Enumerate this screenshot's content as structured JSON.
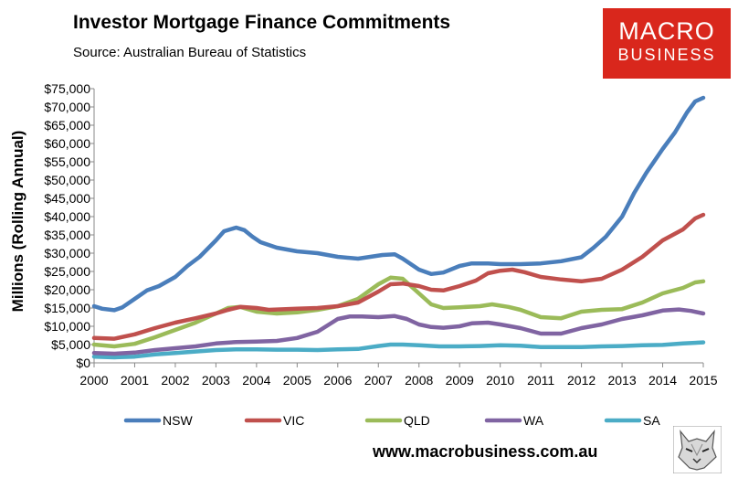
{
  "header": {
    "title": "Investor Mortgage Finance Commitments",
    "subtitle": "Source: Australian Bureau of Statistics"
  },
  "logo": {
    "line1": "MACRO",
    "line2": "BUSINESS",
    "color": "#d9271c"
  },
  "footer": {
    "website": "www.macrobusiness.com.au"
  },
  "chart_data": {
    "type": "line",
    "title": "Investor Mortgage Finance Commitments",
    "ylabel": "Millions (Rolling Annual)",
    "xlabel": "",
    "xlim": [
      2000,
      2015
    ],
    "ylim": [
      0,
      75000
    ],
    "x_ticks": [
      "2000",
      "2001",
      "2002",
      "2003",
      "2004",
      "2005",
      "2006",
      "2007",
      "2008",
      "2009",
      "2010",
      "2011",
      "2012",
      "2013",
      "2014",
      "2015"
    ],
    "y_ticks": [
      "$0",
      "$5,000",
      "$10,000",
      "$15,000",
      "$20,000",
      "$25,000",
      "$30,000",
      "$35,000",
      "$40,000",
      "$45,000",
      "$50,000",
      "$55,000",
      "$60,000",
      "$65,000",
      "$70,000",
      "$75,000"
    ],
    "grid": false,
    "legend": "bottom",
    "series": [
      {
        "name": "NSW",
        "color": "#4a7ebb",
        "points": [
          [
            2000,
            15500
          ],
          [
            2000.2,
            14800
          ],
          [
            2000.5,
            14400
          ],
          [
            2000.7,
            15200
          ],
          [
            2001,
            17500
          ],
          [
            2001.3,
            19800
          ],
          [
            2001.6,
            21000
          ],
          [
            2002,
            23500
          ],
          [
            2002.3,
            26500
          ],
          [
            2002.6,
            29000
          ],
          [
            2003,
            33500
          ],
          [
            2003.2,
            36000
          ],
          [
            2003.5,
            37000
          ],
          [
            2003.7,
            36300
          ],
          [
            2003.9,
            34500
          ],
          [
            2004.1,
            33000
          ],
          [
            2004.5,
            31500
          ],
          [
            2005,
            30500
          ],
          [
            2005.5,
            30000
          ],
          [
            2006,
            29000
          ],
          [
            2006.5,
            28500
          ],
          [
            2006.8,
            29000
          ],
          [
            2007.1,
            29500
          ],
          [
            2007.4,
            29700
          ],
          [
            2007.6,
            28500
          ],
          [
            2008,
            25500
          ],
          [
            2008.3,
            24300
          ],
          [
            2008.6,
            24700
          ],
          [
            2009,
            26500
          ],
          [
            2009.3,
            27200
          ],
          [
            2009.7,
            27200
          ],
          [
            2010,
            27000
          ],
          [
            2010.5,
            27000
          ],
          [
            2011,
            27200
          ],
          [
            2011.5,
            27800
          ],
          [
            2012,
            28900
          ],
          [
            2012.3,
            31500
          ],
          [
            2012.6,
            34500
          ],
          [
            2013,
            40000
          ],
          [
            2013.3,
            46500
          ],
          [
            2013.6,
            52000
          ],
          [
            2014,
            58500
          ],
          [
            2014.3,
            63000
          ],
          [
            2014.6,
            68500
          ],
          [
            2014.8,
            71500
          ],
          [
            2015,
            72500
          ]
        ]
      },
      {
        "name": "VIC",
        "color": "#c0504d",
        "points": [
          [
            2000,
            6800
          ],
          [
            2000.5,
            6600
          ],
          [
            2001,
            7800
          ],
          [
            2001.5,
            9500
          ],
          [
            2002,
            11000
          ],
          [
            2002.5,
            12200
          ],
          [
            2003,
            13500
          ],
          [
            2003.3,
            14500
          ],
          [
            2003.6,
            15300
          ],
          [
            2004,
            15000
          ],
          [
            2004.3,
            14500
          ],
          [
            2005,
            14800
          ],
          [
            2005.5,
            15000
          ],
          [
            2006,
            15500
          ],
          [
            2006.5,
            16500
          ],
          [
            2007,
            19500
          ],
          [
            2007.3,
            21500
          ],
          [
            2007.6,
            21700
          ],
          [
            2008,
            21000
          ],
          [
            2008.3,
            20000
          ],
          [
            2008.6,
            19800
          ],
          [
            2009,
            21000
          ],
          [
            2009.4,
            22500
          ],
          [
            2009.7,
            24500
          ],
          [
            2010,
            25200
          ],
          [
            2010.3,
            25500
          ],
          [
            2010.6,
            24800
          ],
          [
            2011,
            23500
          ],
          [
            2011.5,
            22800
          ],
          [
            2012,
            22300
          ],
          [
            2012.5,
            23000
          ],
          [
            2013,
            25500
          ],
          [
            2013.5,
            29000
          ],
          [
            2014,
            33500
          ],
          [
            2014.5,
            36500
          ],
          [
            2014.8,
            39500
          ],
          [
            2015,
            40500
          ]
        ]
      },
      {
        "name": "QLD",
        "color": "#9bbb59",
        "points": [
          [
            2000,
            5000
          ],
          [
            2000.5,
            4500
          ],
          [
            2001,
            5200
          ],
          [
            2001.5,
            7000
          ],
          [
            2002,
            9000
          ],
          [
            2002.5,
            11000
          ],
          [
            2003,
            13500
          ],
          [
            2003.3,
            15000
          ],
          [
            2003.6,
            15300
          ],
          [
            2004,
            14000
          ],
          [
            2004.5,
            13500
          ],
          [
            2005,
            13800
          ],
          [
            2005.5,
            14500
          ],
          [
            2006,
            15500
          ],
          [
            2006.5,
            17500
          ],
          [
            2007,
            21500
          ],
          [
            2007.3,
            23300
          ],
          [
            2007.6,
            23000
          ],
          [
            2008,
            19000
          ],
          [
            2008.3,
            16000
          ],
          [
            2008.6,
            15000
          ],
          [
            2009,
            15200
          ],
          [
            2009.5,
            15500
          ],
          [
            2009.8,
            16000
          ],
          [
            2010.2,
            15300
          ],
          [
            2010.5,
            14500
          ],
          [
            2011,
            12500
          ],
          [
            2011.5,
            12200
          ],
          [
            2012,
            14000
          ],
          [
            2012.5,
            14500
          ],
          [
            2013,
            14700
          ],
          [
            2013.5,
            16500
          ],
          [
            2014,
            19000
          ],
          [
            2014.5,
            20500
          ],
          [
            2014.8,
            22000
          ],
          [
            2015,
            22300
          ]
        ]
      },
      {
        "name": "WA",
        "color": "#8064a2",
        "points": [
          [
            2000,
            2700
          ],
          [
            2000.5,
            2500
          ],
          [
            2001,
            2800
          ],
          [
            2001.5,
            3500
          ],
          [
            2002,
            4000
          ],
          [
            2002.5,
            4500
          ],
          [
            2003,
            5300
          ],
          [
            2003.5,
            5700
          ],
          [
            2004,
            5800
          ],
          [
            2004.5,
            6000
          ],
          [
            2005,
            6800
          ],
          [
            2005.5,
            8500
          ],
          [
            2006,
            12000
          ],
          [
            2006.3,
            12700
          ],
          [
            2006.6,
            12700
          ],
          [
            2007,
            12500
          ],
          [
            2007.4,
            12800
          ],
          [
            2007.7,
            12000
          ],
          [
            2008,
            10500
          ],
          [
            2008.3,
            9800
          ],
          [
            2008.6,
            9600
          ],
          [
            2009,
            10000
          ],
          [
            2009.3,
            10800
          ],
          [
            2009.7,
            11000
          ],
          [
            2010,
            10500
          ],
          [
            2010.5,
            9500
          ],
          [
            2011,
            8000
          ],
          [
            2011.5,
            8000
          ],
          [
            2012,
            9500
          ],
          [
            2012.5,
            10500
          ],
          [
            2013,
            12000
          ],
          [
            2013.5,
            13000
          ],
          [
            2014,
            14300
          ],
          [
            2014.4,
            14600
          ],
          [
            2014.7,
            14200
          ],
          [
            2015,
            13500
          ]
        ]
      },
      {
        "name": "SA",
        "color": "#4bacc6",
        "points": [
          [
            2000,
            1700
          ],
          [
            2000.5,
            1500
          ],
          [
            2001,
            1700
          ],
          [
            2001.5,
            2300
          ],
          [
            2002,
            2700
          ],
          [
            2002.5,
            3100
          ],
          [
            2003,
            3500
          ],
          [
            2003.5,
            3700
          ],
          [
            2004,
            3700
          ],
          [
            2004.5,
            3600
          ],
          [
            2005,
            3600
          ],
          [
            2005.5,
            3500
          ],
          [
            2006,
            3700
          ],
          [
            2006.5,
            3800
          ],
          [
            2007,
            4600
          ],
          [
            2007.3,
            5000
          ],
          [
            2007.6,
            5000
          ],
          [
            2008,
            4800
          ],
          [
            2008.5,
            4500
          ],
          [
            2009,
            4500
          ],
          [
            2009.5,
            4600
          ],
          [
            2010,
            4800
          ],
          [
            2010.5,
            4700
          ],
          [
            2011,
            4300
          ],
          [
            2011.5,
            4300
          ],
          [
            2012,
            4300
          ],
          [
            2012.5,
            4500
          ],
          [
            2013,
            4600
          ],
          [
            2013.5,
            4800
          ],
          [
            2014,
            4900
          ],
          [
            2014.5,
            5300
          ],
          [
            2015,
            5600
          ]
        ]
      }
    ]
  }
}
